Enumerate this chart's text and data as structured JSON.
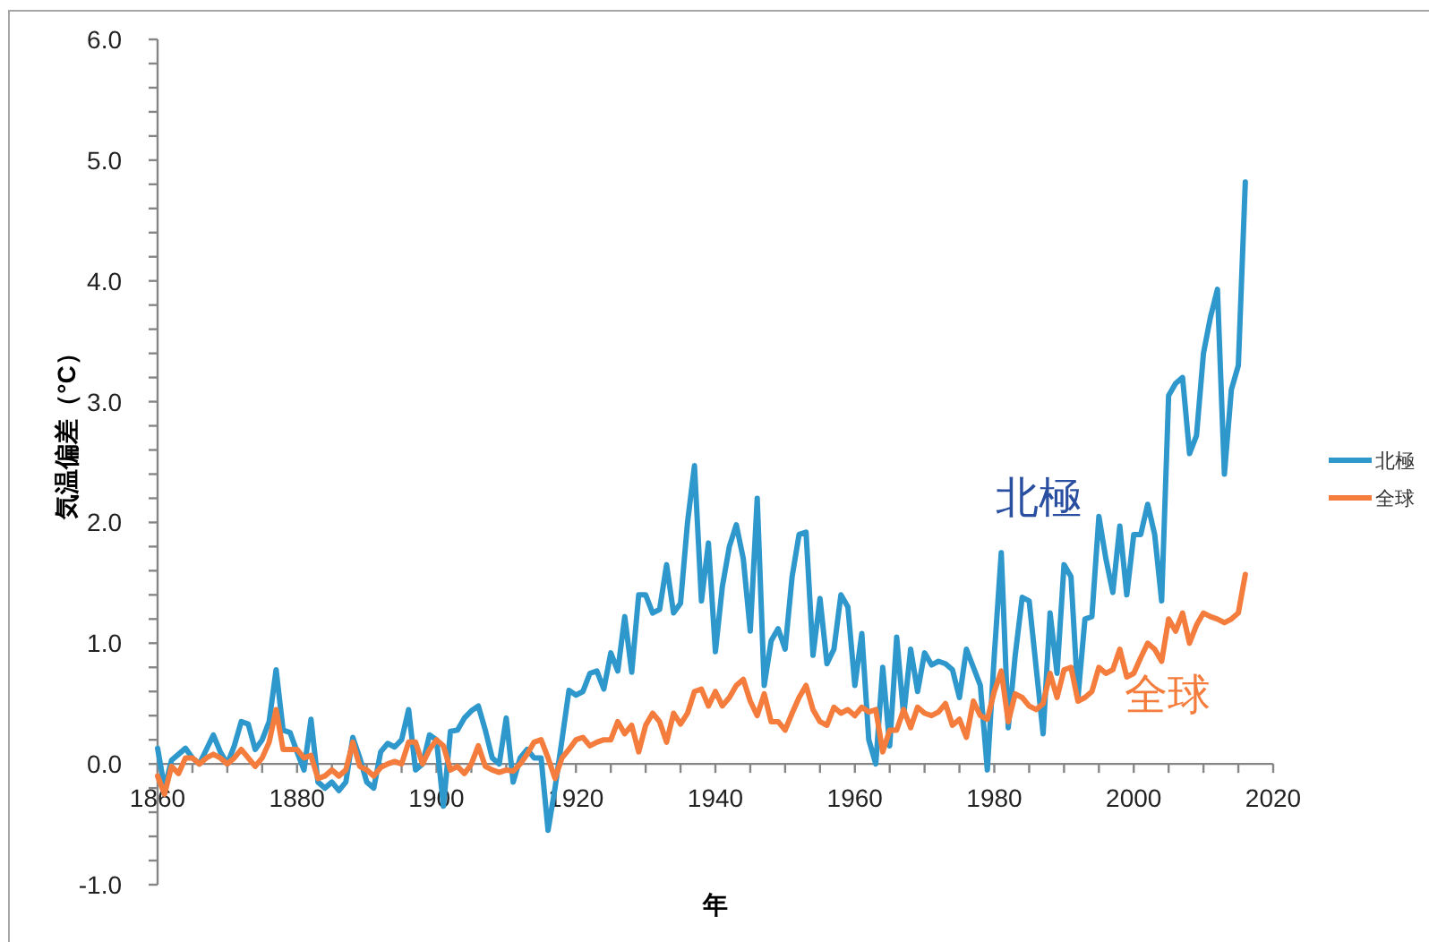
{
  "chart_data": {
    "type": "line",
    "xlabel": "年",
    "ylabel": "気温偏差（°C）",
    "xlim": [
      1860,
      2020
    ],
    "xticks": [
      1860,
      {
        "value": 1865,
        "label": null
      },
      {
        "value": 1870,
        "label": null
      },
      {
        "value": 1875,
        "label": null
      },
      1880,
      {
        "value": 1885,
        "label": null
      },
      {
        "value": 1890,
        "label": null
      },
      {
        "value": 1895,
        "label": null
      },
      1900,
      {
        "value": 1905,
        "label": null
      },
      {
        "value": 1910,
        "label": null
      },
      {
        "value": 1915,
        "label": null
      },
      1920,
      {
        "value": 1925,
        "label": null
      },
      {
        "value": 1930,
        "label": null
      },
      {
        "value": 1935,
        "label": null
      },
      1940,
      {
        "value": 1945,
        "label": null
      },
      {
        "value": 1950,
        "label": null
      },
      {
        "value": 1955,
        "label": null
      },
      1960,
      {
        "value": 1965,
        "label": null
      },
      {
        "value": 1970,
        "label": null
      },
      {
        "value": 1975,
        "label": null
      },
      1980,
      {
        "value": 1985,
        "label": null
      },
      {
        "value": 1990,
        "label": null
      },
      {
        "value": 1995,
        "label": null
      },
      2000,
      {
        "value": 2005,
        "label": null
      },
      {
        "value": 2010,
        "label": null
      },
      {
        "value": 2015,
        "label": null
      },
      2020
    ],
    "ylim": [
      -1,
      6
    ],
    "yticks": [
      {
        "value": -1,
        "label": "-1.0"
      },
      {
        "value": -0.8,
        "label": null
      },
      {
        "value": -0.6,
        "label": null
      },
      {
        "value": -0.4,
        "label": null
      },
      {
        "value": -0.2,
        "label": null
      },
      {
        "value": 0,
        "label": "0.0"
      },
      {
        "value": 0.2,
        "label": null
      },
      {
        "value": 0.4,
        "label": null
      },
      {
        "value": 0.6,
        "label": null
      },
      {
        "value": 0.8,
        "label": null
      },
      {
        "value": 1,
        "label": "1.0"
      },
      {
        "value": 1.2,
        "label": null
      },
      {
        "value": 1.4,
        "label": null
      },
      {
        "value": 1.6,
        "label": null
      },
      {
        "value": 1.8,
        "label": null
      },
      {
        "value": 2,
        "label": "2.0"
      },
      {
        "value": 2.2,
        "label": null
      },
      {
        "value": 2.4,
        "label": null
      },
      {
        "value": 2.6,
        "label": null
      },
      {
        "value": 2.8,
        "label": null
      },
      {
        "value": 3,
        "label": "3.0"
      },
      {
        "value": 3.2,
        "label": null
      },
      {
        "value": 3.4,
        "label": null
      },
      {
        "value": 3.6,
        "label": null
      },
      {
        "value": 3.8,
        "label": null
      },
      {
        "value": 4,
        "label": "4.0"
      },
      {
        "value": 4.2,
        "label": null
      },
      {
        "value": 4.4,
        "label": null
      },
      {
        "value": 4.6,
        "label": null
      },
      {
        "value": 4.8,
        "label": null
      },
      {
        "value": 5,
        "label": "5.0"
      },
      {
        "value": 5.2,
        "label": null
      },
      {
        "value": 5.4,
        "label": null
      },
      {
        "value": 5.6,
        "label": null
      },
      {
        "value": 5.8,
        "label": null
      },
      {
        "value": 6,
        "label": "6.0"
      }
    ],
    "x": [
      1860,
      1861,
      1862,
      1863,
      1864,
      1865,
      1866,
      1867,
      1868,
      1869,
      1870,
      1871,
      1872,
      1873,
      1874,
      1875,
      1876,
      1877,
      1878,
      1879,
      1880,
      1881,
      1882,
      1883,
      1884,
      1885,
      1886,
      1887,
      1888,
      1889,
      1890,
      1891,
      1892,
      1893,
      1894,
      1895,
      1896,
      1897,
      1898,
      1899,
      1900,
      1901,
      1902,
      1903,
      1904,
      1905,
      1906,
      1907,
      1908,
      1909,
      1910,
      1911,
      1912,
      1913,
      1914,
      1915,
      1916,
      1917,
      1918,
      1919,
      1920,
      1921,
      1922,
      1923,
      1924,
      1925,
      1926,
      1927,
      1928,
      1929,
      1930,
      1931,
      1932,
      1933,
      1934,
      1935,
      1936,
      1937,
      1938,
      1939,
      1940,
      1941,
      1942,
      1943,
      1944,
      1945,
      1946,
      1947,
      1948,
      1949,
      1950,
      1951,
      1952,
      1953,
      1954,
      1955,
      1956,
      1957,
      1958,
      1959,
      1960,
      1961,
      1962,
      1963,
      1964,
      1965,
      1966,
      1967,
      1968,
      1969,
      1970,
      1971,
      1972,
      1973,
      1974,
      1975,
      1976,
      1977,
      1978,
      1979,
      1980,
      1981,
      1982,
      1983,
      1984,
      1985,
      1986,
      1987,
      1988,
      1989,
      1990,
      1991,
      1992,
      1993,
      1994,
      1995,
      1996,
      1997,
      1998,
      1999,
      2000,
      2001,
      2002,
      2003,
      2004,
      2005,
      2006,
      2007,
      2008,
      2009,
      2010,
      2011,
      2012,
      2013,
      2014,
      2015,
      2016
    ],
    "series": [
      {
        "name": "北極",
        "color": "#2e98cc",
        "values": [
          0.13,
          -0.2,
          0.03,
          0.08,
          0.13,
          0.05,
          0.0,
          0.12,
          0.24,
          0.1,
          0.0,
          0.15,
          0.35,
          0.33,
          0.12,
          0.2,
          0.35,
          0.78,
          0.28,
          0.26,
          0.1,
          -0.05,
          0.37,
          -0.15,
          -0.2,
          -0.15,
          -0.22,
          -0.15,
          0.22,
          0.05,
          -0.15,
          -0.2,
          0.1,
          0.17,
          0.14,
          0.2,
          0.45,
          -0.05,
          0.0,
          0.24,
          0.2,
          -0.35,
          0.27,
          0.28,
          0.38,
          0.44,
          0.48,
          0.28,
          0.05,
          0.0,
          0.38,
          -0.15,
          0.05,
          0.12,
          0.05,
          0.05,
          -0.55,
          -0.2,
          0.2,
          0.61,
          0.57,
          0.6,
          0.75,
          0.77,
          0.62,
          0.92,
          0.77,
          1.22,
          0.76,
          1.4,
          1.4,
          1.25,
          1.28,
          1.65,
          1.25,
          1.33,
          2.0,
          2.47,
          1.35,
          1.83,
          0.93,
          1.47,
          1.8,
          1.98,
          1.7,
          1.1,
          2.2,
          0.65,
          1.02,
          1.12,
          0.95,
          1.55,
          1.9,
          1.92,
          0.9,
          1.37,
          0.83,
          0.95,
          1.4,
          1.3,
          0.65,
          1.08,
          0.2,
          0.0,
          0.8,
          0.15,
          1.05,
          0.4,
          0.95,
          0.6,
          0.92,
          0.82,
          0.85,
          0.83,
          0.78,
          0.55,
          0.95,
          0.8,
          0.65,
          -0.05,
          0.9,
          1.75,
          0.3,
          0.9,
          1.38,
          1.35,
          0.8,
          0.25,
          1.25,
          0.75,
          1.65,
          1.55,
          0.55,
          1.2,
          1.22,
          2.05,
          1.7,
          1.42,
          1.97,
          1.4,
          1.9,
          1.9,
          2.15,
          1.9,
          1.35,
          3.05,
          3.15,
          3.2,
          2.57,
          2.72,
          3.4,
          3.7,
          3.93,
          2.4,
          3.1,
          3.3,
          4.82
        ]
      },
      {
        "name": "全球",
        "color": "#f47c3c",
        "values": [
          -0.1,
          -0.25,
          -0.02,
          -0.08,
          0.05,
          0.05,
          0.0,
          0.05,
          0.08,
          0.05,
          0.0,
          0.05,
          0.12,
          0.05,
          -0.02,
          0.05,
          0.18,
          0.45,
          0.12,
          0.12,
          0.12,
          0.05,
          0.07,
          -0.12,
          -0.1,
          -0.05,
          -0.1,
          -0.05,
          0.18,
          -0.02,
          -0.05,
          -0.1,
          -0.03,
          0.0,
          0.02,
          0.0,
          0.18,
          0.18,
          0.0,
          0.12,
          0.2,
          0.15,
          -0.05,
          -0.02,
          -0.08,
          0.0,
          0.15,
          -0.02,
          -0.05,
          -0.07,
          -0.05,
          -0.06,
          0.0,
          0.08,
          0.18,
          0.2,
          0.05,
          -0.12,
          0.05,
          0.12,
          0.2,
          0.22,
          0.15,
          0.18,
          0.2,
          0.2,
          0.35,
          0.25,
          0.32,
          0.1,
          0.32,
          0.42,
          0.35,
          0.18,
          0.42,
          0.33,
          0.42,
          0.6,
          0.62,
          0.48,
          0.6,
          0.48,
          0.55,
          0.65,
          0.7,
          0.52,
          0.4,
          0.58,
          0.35,
          0.35,
          0.28,
          0.42,
          0.55,
          0.65,
          0.45,
          0.35,
          0.32,
          0.47,
          0.42,
          0.45,
          0.4,
          0.47,
          0.43,
          0.45,
          0.1,
          0.28,
          0.28,
          0.45,
          0.3,
          0.47,
          0.42,
          0.4,
          0.43,
          0.5,
          0.32,
          0.37,
          0.22,
          0.52,
          0.4,
          0.37,
          0.6,
          0.77,
          0.35,
          0.58,
          0.55,
          0.48,
          0.45,
          0.5,
          0.75,
          0.55,
          0.78,
          0.8,
          0.52,
          0.55,
          0.6,
          0.8,
          0.75,
          0.78,
          0.95,
          0.72,
          0.75,
          0.88,
          1.0,
          0.95,
          0.85,
          1.2,
          1.1,
          1.25,
          1.0,
          1.15,
          1.25,
          1.22,
          1.2,
          1.17,
          1.2,
          1.25,
          1.57
        ]
      }
    ],
    "annotations": [
      "北極",
      "全球"
    ],
    "legend": "right",
    "grid": false,
    "marker": "none",
    "line_style": "solid"
  }
}
